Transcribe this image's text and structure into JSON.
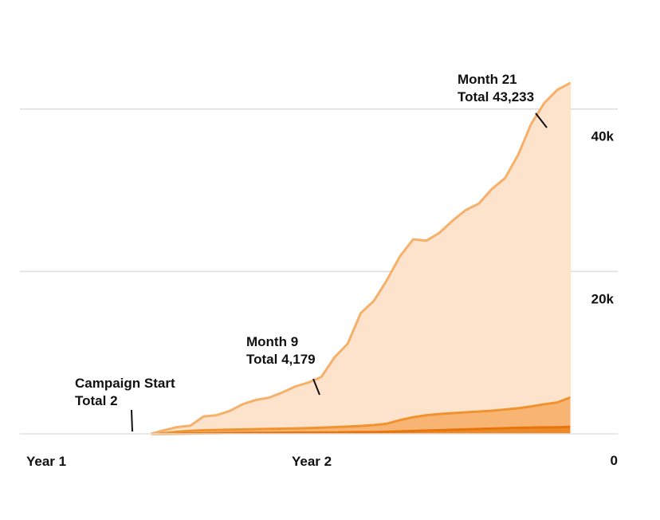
{
  "chart_data": {
    "type": "area",
    "stacked": true,
    "title": "",
    "xlabel": "",
    "ylabel": "",
    "ylim": [
      0,
      44000
    ],
    "x_ticks": [
      "Year 1",
      "Year 2"
    ],
    "y_ticks": [
      {
        "value": 0,
        "label": "0"
      },
      {
        "value": 20000,
        "label": "20k"
      },
      {
        "value": 40000,
        "label": "40k"
      }
    ],
    "grid": true,
    "y_axis_side": "right",
    "x": [
      5.0,
      5.5,
      6.0,
      6.5,
      7.0,
      7.5,
      8.0,
      8.5,
      9.0,
      9.5,
      10.0,
      10.5,
      11.0,
      11.5,
      12.0,
      12.5,
      13.0,
      13.5,
      14.0,
      14.5,
      15.0,
      15.5,
      16.0,
      16.5,
      17.0,
      17.5,
      18.0,
      18.5,
      19.0,
      19.5,
      20.0,
      20.5,
      21.0
    ],
    "x_domain": [
      0,
      22.8
    ],
    "series": [
      {
        "color": "#e8740c",
        "fill": "#ec8a2a",
        "values": [
          2,
          10,
          25,
          40,
          60,
          80,
          100,
          110,
          120,
          130,
          140,
          150,
          160,
          170,
          180,
          195,
          210,
          230,
          260,
          300,
          350,
          400,
          450,
          500,
          550,
          600,
          650,
          700,
          750,
          780,
          800,
          820,
          850
        ]
      },
      {
        "color": "#f0932f",
        "fill": "#f7b472",
        "values": [
          0,
          80,
          230,
          330,
          380,
          400,
          420,
          440,
          460,
          480,
          500,
          530,
          560,
          600,
          650,
          700,
          760,
          850,
          1000,
          1400,
          1700,
          1900,
          2000,
          2050,
          2100,
          2150,
          2200,
          2300,
          2400,
          2600,
          2850,
          3050,
          3650
        ]
      },
      {
        "color": "#f5b06a",
        "fill": "#fde3cb",
        "values": [
          0,
          350,
          580,
          630,
          1700,
          1820,
          2300,
          3100,
          3600,
          3850,
          4450,
          5150,
          5600,
          6250,
          8600,
          10200,
          13900,
          15300,
          17700,
          20200,
          21900,
          21500,
          22300,
          23700,
          24900,
          25600,
          27300,
          28500,
          31200,
          34800,
          37100,
          38500,
          38733
        ]
      }
    ],
    "annotations": [
      {
        "lines": [
          "Campaign Start",
          "Total 2"
        ],
        "x": 5.0,
        "total": 2
      },
      {
        "lines": [
          "Month 9",
          "Total 4,179"
        ],
        "x": 9.0,
        "total": 4179
      },
      {
        "lines": [
          "Month 21",
          "Total 43,233"
        ],
        "x": 21.0,
        "total": 43233
      }
    ]
  }
}
